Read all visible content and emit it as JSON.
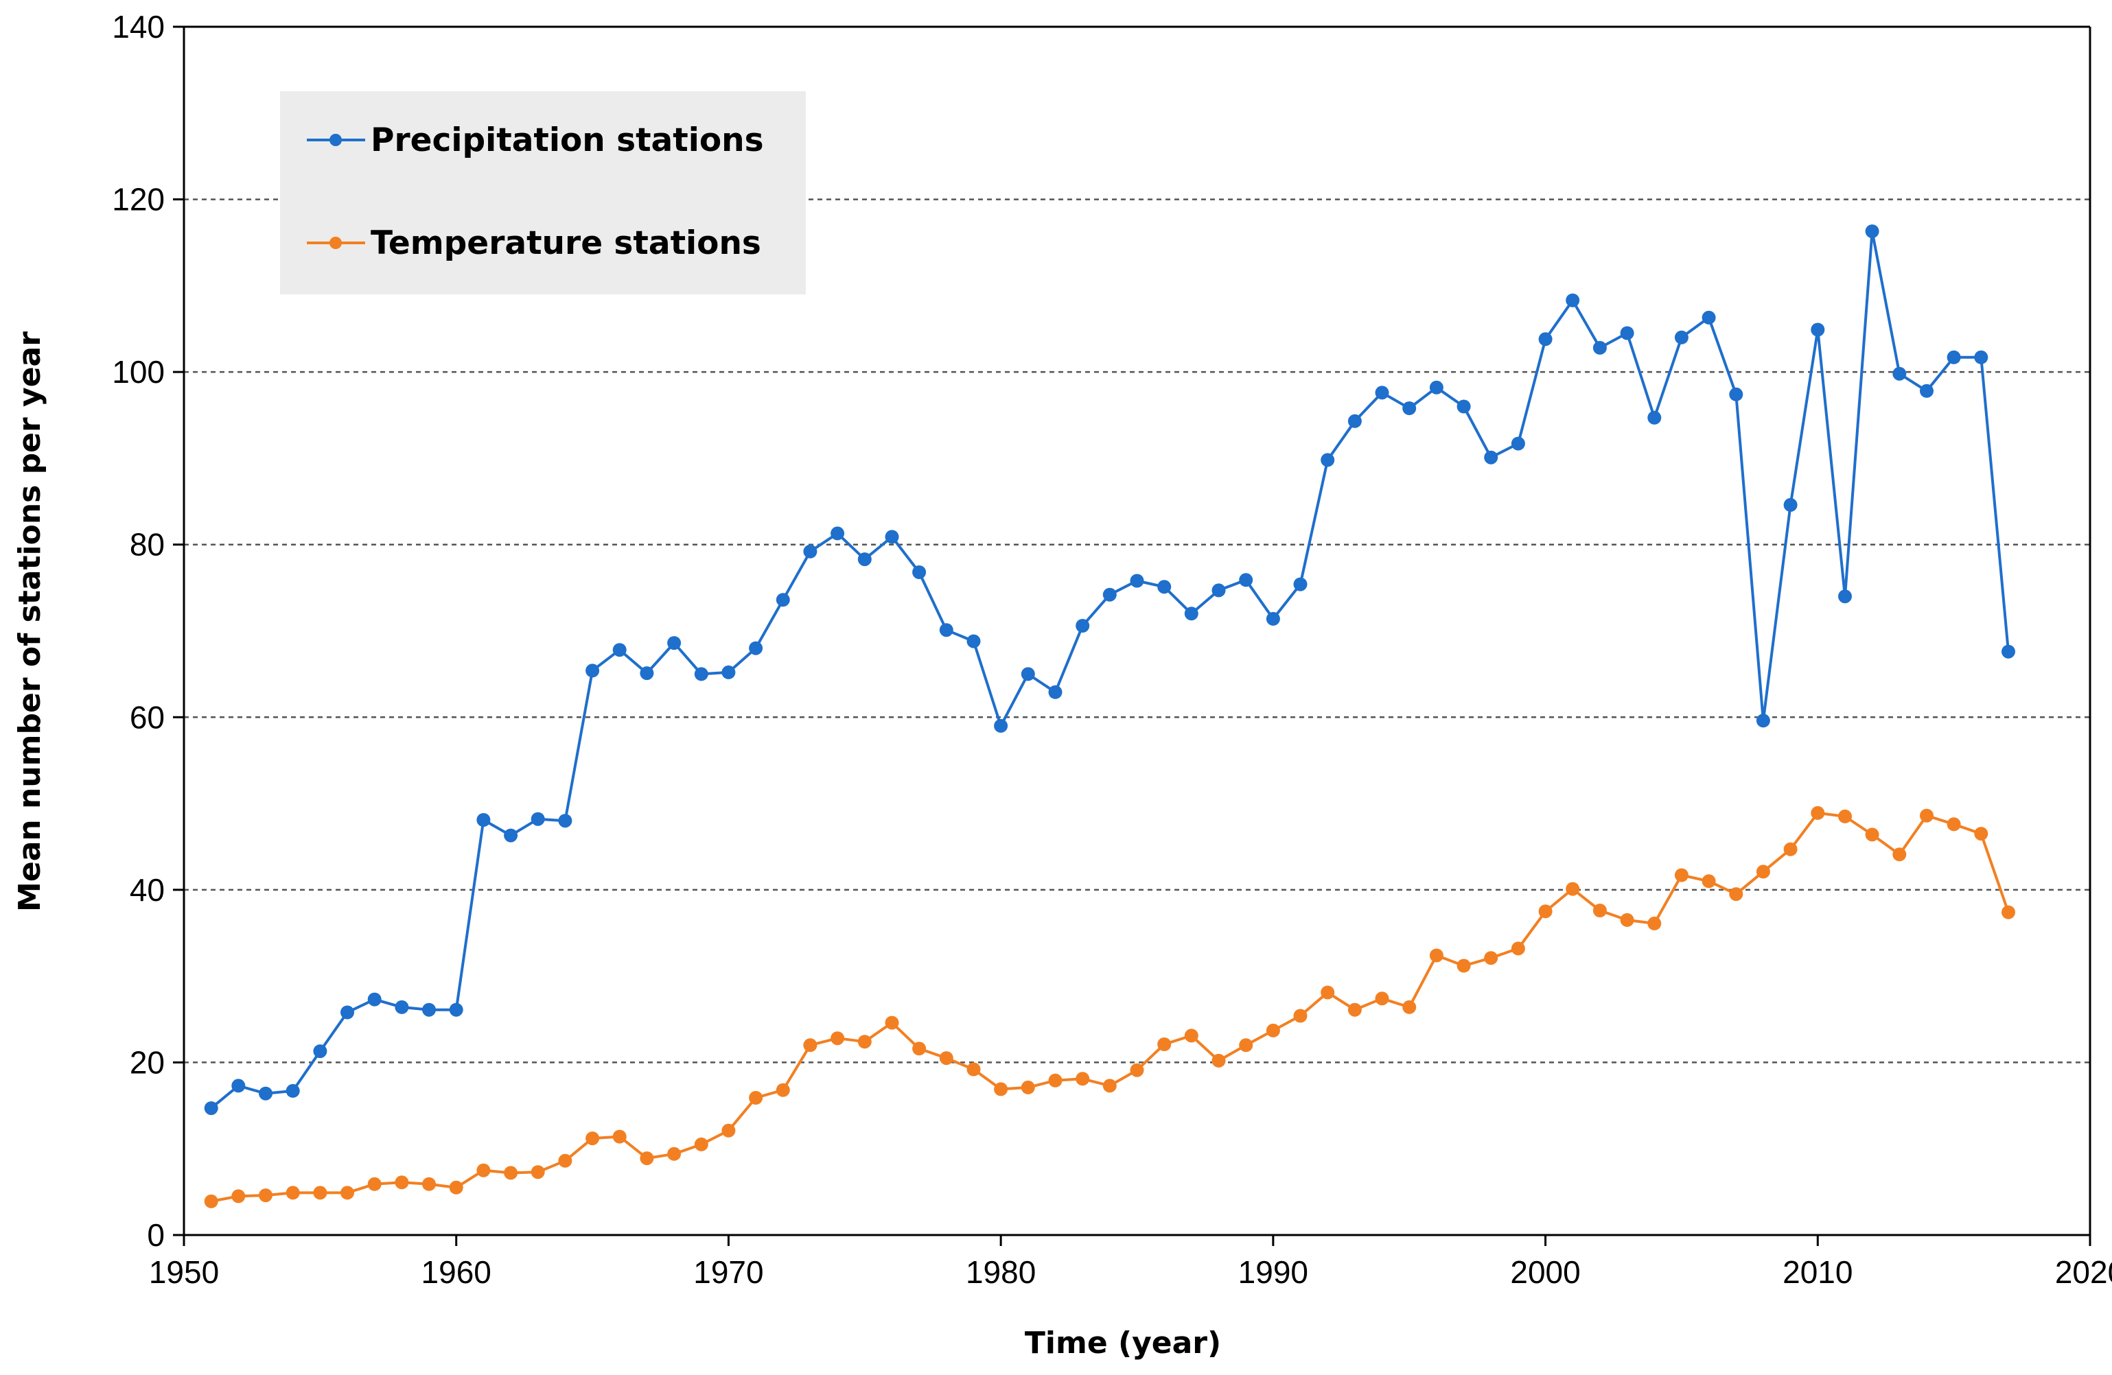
{
  "chart_data": {
    "type": "line",
    "title": "",
    "xlabel": "Time (year)",
    "ylabel": "Mean number of stations per year",
    "xlim": [
      1950,
      2020
    ],
    "ylim": [
      0,
      140
    ],
    "xticks": [
      "1950",
      "1960",
      "1970",
      "1980",
      "1990",
      "2000",
      "2010",
      "2020"
    ],
    "yticks": [
      "0",
      "20",
      "40",
      "60",
      "80",
      "100",
      "120",
      "140"
    ],
    "grid": "horizontal dashed",
    "legend_position": "top-left",
    "x": [
      1951,
      1952,
      1953,
      1954,
      1955,
      1956,
      1957,
      1958,
      1959,
      1960,
      1961,
      1962,
      1963,
      1964,
      1965,
      1966,
      1967,
      1968,
      1969,
      1970,
      1971,
      1972,
      1973,
      1974,
      1975,
      1976,
      1977,
      1978,
      1979,
      1980,
      1981,
      1982,
      1983,
      1984,
      1985,
      1986,
      1987,
      1988,
      1989,
      1990,
      1991,
      1992,
      1993,
      1994,
      1995,
      1996,
      1997,
      1998,
      1999,
      2000,
      2001,
      2002,
      2003,
      2004,
      2005,
      2006,
      2007,
      2008,
      2009,
      2010,
      2011,
      2012,
      2013,
      2014,
      2015,
      2016,
      2017
    ],
    "series": [
      {
        "name": "Precipitation stations",
        "color": "#1f6fcc",
        "values": [
          14.7,
          17.3,
          16.4,
          16.7,
          21.3,
          25.8,
          27.3,
          26.4,
          26.1,
          26.1,
          48.1,
          46.3,
          48.2,
          48.0,
          65.4,
          67.8,
          65.1,
          68.6,
          65.0,
          65.2,
          68.0,
          73.6,
          79.2,
          81.3,
          78.3,
          80.9,
          76.8,
          70.1,
          68.8,
          59.0,
          65.0,
          62.9,
          70.6,
          74.2,
          75.8,
          75.1,
          72.0,
          74.7,
          75.9,
          71.4,
          75.4,
          89.8,
          94.3,
          97.6,
          95.8,
          98.2,
          96.0,
          90.1,
          91.7,
          103.8,
          108.3,
          102.8,
          104.5,
          94.7,
          104.0,
          106.3,
          97.4,
          59.6,
          84.6,
          104.9,
          74.0,
          116.3,
          99.8,
          97.8,
          101.7,
          101.7,
          67.6
        ]
      },
      {
        "name": "Temperature stations",
        "color": "#f28022",
        "values": [
          3.9,
          4.5,
          4.6,
          4.9,
          4.9,
          4.9,
          5.9,
          6.1,
          5.9,
          5.5,
          7.5,
          7.2,
          7.3,
          8.6,
          11.2,
          11.4,
          8.9,
          9.4,
          10.5,
          12.1,
          15.9,
          16.8,
          22.0,
          22.8,
          22.4,
          24.6,
          21.6,
          20.5,
          19.2,
          16.9,
          17.1,
          17.9,
          18.1,
          17.3,
          19.1,
          22.1,
          23.1,
          20.2,
          22.0,
          23.7,
          25.4,
          28.1,
          26.1,
          27.4,
          26.4,
          32.4,
          31.2,
          32.1,
          33.2,
          37.5,
          40.1,
          37.6,
          36.5,
          36.1,
          41.7,
          41.0,
          39.5,
          42.1,
          44.7,
          48.9,
          48.5,
          46.4,
          44.1,
          48.6,
          47.6,
          46.5,
          37.4
        ]
      }
    ]
  }
}
